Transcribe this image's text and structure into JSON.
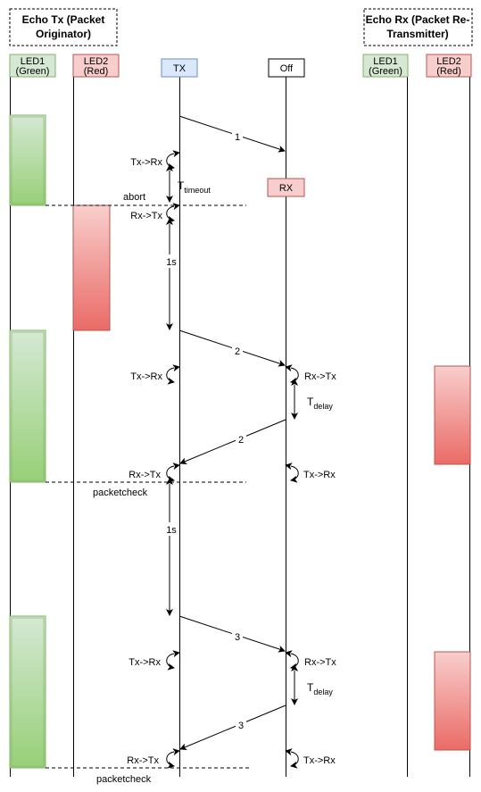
{
  "tx_device": {
    "title_line1": "Echo Tx (Packet",
    "title_line2": "Originator)"
  },
  "rx_device": {
    "title_line1": "Echo Rx (Packet Re-",
    "title_line2": "Transmitter)"
  },
  "lanes": {
    "led1_tx": {
      "line1": "LED1",
      "line2": "(Green)"
    },
    "led2_tx": {
      "line1": "LED2",
      "line2": "(Red)"
    },
    "tx_radio": {
      "label": "TX"
    },
    "rx_radio": {
      "label": "Off"
    },
    "led1_rx": {
      "line1": "LED1",
      "line2": "(Green)"
    },
    "led2_rx": {
      "line1": "LED2",
      "line2": "(Red)"
    }
  },
  "rx_state": {
    "label": "RX"
  },
  "messages": {
    "m1": "1",
    "m2_out": "2",
    "m2_back": "2",
    "m3_out": "3",
    "m3_back": "3"
  },
  "transitions": {
    "txrx_1": "Tx->Rx",
    "rxtx_1": "Rx->Tx",
    "txrx_2": "Tx->Rx",
    "rx_rxtx_2": "Rx->Tx",
    "rxtx_2": "Rx->Tx",
    "rx_txrx_2": "Tx->Rx",
    "txrx_3": "Tx->Rx",
    "rx_rxtx_3": "Rx->Tx",
    "rxtx_3": "Rx->Tx",
    "rx_txrx_3": "Tx->Rx"
  },
  "timings": {
    "timeout_main": "T",
    "timeout_sub": "timeout",
    "wait_1": "1s",
    "wait_2": "1s",
    "delay_2_main": "T",
    "delay_2_sub": "delay",
    "delay_3_main": "T",
    "delay_3_sub": "delay"
  },
  "events": {
    "abort": "abort",
    "packetcheck_1": "packetcheck",
    "packetcheck_2": "packetcheck"
  },
  "colors": {
    "green_fill": "#d5e8d4",
    "green_stroke": "#82b366",
    "red_fill": "#f8cecc",
    "red_stroke": "#b85450",
    "blue_fill": "#dae8fc",
    "blue_stroke": "#6c8ebf"
  }
}
